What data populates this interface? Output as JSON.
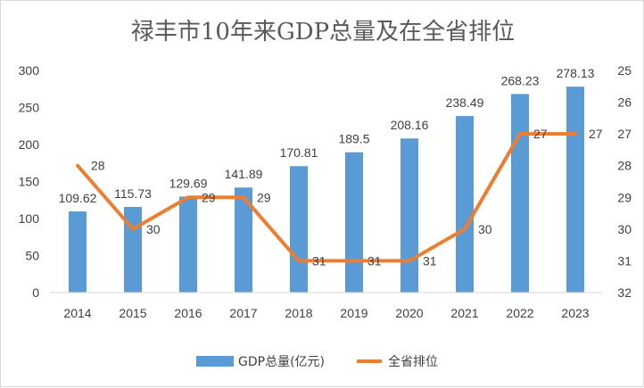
{
  "chart_data": {
    "type": "bar+line",
    "title": "禄丰市10年来GDP总量及在全省排位",
    "categories": [
      "2014",
      "2015",
      "2016",
      "2017",
      "2018",
      "2019",
      "2020",
      "2021",
      "2022",
      "2023"
    ],
    "series": [
      {
        "name": "GDP总量(亿元)",
        "type": "bar",
        "axis": "left",
        "color": "#5b9bd5",
        "values": [
          109.62,
          115.73,
          129.69,
          141.89,
          170.81,
          189.5,
          208.16,
          238.49,
          268.23,
          278.13
        ],
        "labels": [
          "109.62",
          "115.73",
          "129.69",
          "141.89",
          "170.81",
          "189.5",
          "208.16",
          "238.49",
          "268.23",
          "278.13"
        ]
      },
      {
        "name": "全省排位",
        "type": "line",
        "axis": "right",
        "color": "#ed7d31",
        "values": [
          28,
          30,
          29,
          29,
          31,
          31,
          31,
          30,
          27,
          27
        ],
        "labels": [
          "28",
          "30",
          "29",
          "29",
          "31",
          "31",
          "31",
          "30",
          "27",
          "27"
        ]
      }
    ],
    "y_left": {
      "min": 0,
      "max": 300,
      "ticks": [
        "0",
        "50",
        "100",
        "150",
        "200",
        "250",
        "300"
      ]
    },
    "y_right": {
      "min": 25,
      "max": 32,
      "reversed": true,
      "ticks": [
        "25",
        "26",
        "27",
        "28",
        "29",
        "30",
        "31",
        "32"
      ]
    },
    "grid": false,
    "legend_position": "bottom"
  }
}
